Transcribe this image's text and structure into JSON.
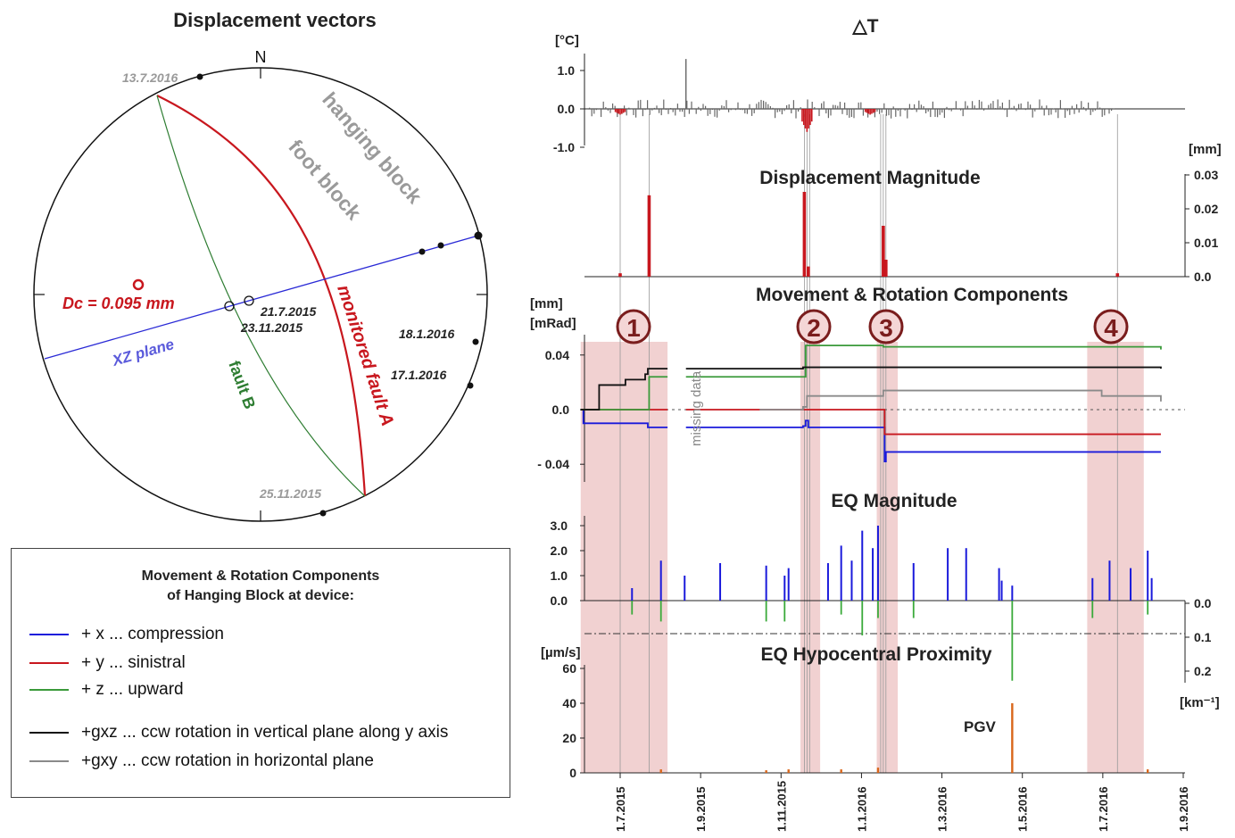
{
  "stereonet": {
    "title": "Displacement vectors",
    "north_label": "N",
    "dc_label": "Dc = 0.095 mm",
    "labels": {
      "hanging_block": "hanging block",
      "foot_block": "foot block",
      "monitored_fault_a": "monitored fault A",
      "fault_b": "fault B",
      "xz_plane": "XZ plane"
    },
    "dates": {
      "d_13_7_2016": "13.7.2016",
      "d_25_11_2015": "25.11.2015",
      "d_21_7_2015": "21.7.2015",
      "d_23_11_2015": "23.11.2015",
      "d_18_1_2016": "18.1.2016",
      "d_17_1_2016": "17.1.2016"
    },
    "colors": {
      "fault_a": "#c8171e",
      "fault_b": "#2e7d32",
      "xz_plane": "#2a2ad6",
      "date_gray": "#9a9a9a"
    }
  },
  "legend": {
    "title_line1": "Movement & Rotation Components",
    "title_line2": "of Hanging Block at device:",
    "items": [
      {
        "label": "+ x ... compression",
        "color": "#1a1adb"
      },
      {
        "label": "+ y ... sinistral",
        "color": "#c8171e"
      },
      {
        "label": "+ z ... upward",
        "color": "#3a9a3a"
      },
      {
        "label": "+gxz ... ccw rotation in vertical plane along y axis",
        "color": "#111111"
      },
      {
        "label": "+gxy ... ccw rotation in horizontal plane",
        "color": "#8a8a8a"
      }
    ]
  },
  "highlight_labels": [
    "1",
    "2",
    "3",
    "4"
  ],
  "missing_data_label": "missing data",
  "pgv_label": "PGV",
  "chart_data": [
    {
      "type": "bar",
      "title": "△T",
      "ylabel": "[°C]",
      "ylim": [
        -1.0,
        1.0
      ],
      "yticks": [
        "1.0",
        "0.0",
        "-1.0"
      ],
      "x_dates": [
        "1.7.2015",
        "1.9.2015",
        "1.11.2015",
        "1.1.2016",
        "1.3.2016",
        "1.5.2016",
        "1.7.2016",
        "1.9.2016"
      ],
      "highlighted_negative_dips": [
        {
          "date": "2015-07-01",
          "value": -0.15
        },
        {
          "date": "2015-11-20",
          "value": -0.6
        },
        {
          "date": "2016-01-07",
          "value": -0.15
        }
      ],
      "max_spike": {
        "date": "2015-08-20",
        "value": 1.3
      }
    },
    {
      "type": "bar",
      "title": "Displacement Magnitude",
      "ylabel": "[mm]",
      "ylim": [
        0,
        0.03
      ],
      "yticks": [
        "0.03",
        "0.02",
        "0.01",
        "0.0"
      ],
      "bars": [
        {
          "date": "2015-07-01",
          "value": 0.001
        },
        {
          "date": "2015-07-23",
          "value": 0.024
        },
        {
          "date": "2015-11-18",
          "value": 0.025
        },
        {
          "date": "2015-11-21",
          "value": 0.003
        },
        {
          "date": "2016-01-17",
          "value": 0.015
        },
        {
          "date": "2016-01-19",
          "value": 0.005
        },
        {
          "date": "2016-07-13",
          "value": 0.001
        }
      ]
    },
    {
      "type": "line",
      "title": "Movement & Rotation Components",
      "ylabel": "[mm]",
      "ylabel2": "[mRad]",
      "ylim": [
        -0.06,
        0.06
      ],
      "yticks": [
        "0.04",
        "0.0",
        "- 0.04"
      ],
      "series": [
        {
          "name": "+ x ... compression",
          "color": "#1a1adb",
          "points": [
            [
              "2015-06-01",
              0.0
            ],
            [
              "2015-06-03",
              -0.01
            ],
            [
              "2015-07-22",
              -0.013
            ],
            [
              "2015-11-17",
              -0.012
            ],
            [
              "2015-11-19",
              -0.008
            ],
            [
              "2015-11-21",
              -0.013
            ],
            [
              "2016-01-17",
              -0.013
            ],
            [
              "2016-01-18",
              -0.038
            ],
            [
              "2016-01-19",
              -0.031
            ],
            [
              "2016-08-15",
              -0.031
            ]
          ]
        },
        {
          "name": "+ y ... sinistral",
          "color": "#c8171e",
          "points": [
            [
              "2015-06-01",
              0.0
            ],
            [
              "2015-11-17",
              0.0
            ],
            [
              "2016-01-16",
              0.0
            ],
            [
              "2016-01-18",
              -0.018
            ],
            [
              "2016-08-15",
              -0.018
            ]
          ]
        },
        {
          "name": "+ z ... upward",
          "color": "#3a9a3a",
          "points": [
            [
              "2015-06-01",
              0.0
            ],
            [
              "2015-07-22",
              0.0
            ],
            [
              "2015-07-23",
              0.024
            ],
            [
              "2015-11-17",
              0.024
            ],
            [
              "2015-11-19",
              0.047
            ],
            [
              "2016-01-17",
              0.046
            ],
            [
              "2016-08-15",
              0.044
            ]
          ]
        },
        {
          "name": "+gxz ... ccw rotation in vertical plane along y axis",
          "color": "#111111",
          "points": [
            [
              "2015-06-01",
              0.0
            ],
            [
              "2015-06-08",
              0.0
            ],
            [
              "2015-06-15",
              0.018
            ],
            [
              "2015-07-05",
              0.022
            ],
            [
              "2015-07-20",
              0.026
            ],
            [
              "2015-07-22",
              0.03
            ],
            [
              "2015-11-17",
              0.031
            ],
            [
              "2016-01-17",
              0.031
            ],
            [
              "2016-08-15",
              0.03
            ]
          ]
        },
        {
          "name": "+gxy ... ccw rotation in horizontal plane",
          "color": "#8a8a8a",
          "points": [
            [
              "2015-10-15",
              0.0
            ],
            [
              "2015-11-17",
              0.002
            ],
            [
              "2015-11-20",
              0.01
            ],
            [
              "2016-01-17",
              0.014
            ],
            [
              "2016-06-27",
              0.014
            ],
            [
              "2016-07-01",
              0.01
            ],
            [
              "2016-08-15",
              0.006
            ]
          ]
        }
      ],
      "missing_data_period": [
        "2015-08-06",
        "2015-08-20"
      ],
      "highlight_periods": [
        {
          "label": "1",
          "start": "2015-06-01",
          "end": "2015-08-06"
        },
        {
          "label": "2",
          "start": "2015-11-15",
          "end": "2015-11-30"
        },
        {
          "label": "3",
          "start": "2016-01-12",
          "end": "2016-01-28"
        },
        {
          "label": "4",
          "start": "2016-06-20",
          "end": "2016-08-02"
        }
      ]
    },
    {
      "type": "bar",
      "title": "EQ Magnitude",
      "ylim": [
        0,
        3.0
      ],
      "yticks": [
        "3.0",
        "2.0",
        "1.0",
        "0.0"
      ],
      "magnitudes": [
        {
          "date": "2015-07-10",
          "value": 0.5
        },
        {
          "date": "2015-08-01",
          "value": 1.6
        },
        {
          "date": "2015-08-19",
          "value": 1.0
        },
        {
          "date": "2015-09-15",
          "value": 1.5
        },
        {
          "date": "2015-10-20",
          "value": 1.4
        },
        {
          "date": "2015-11-03",
          "value": 1.0
        },
        {
          "date": "2015-11-06",
          "value": 1.3
        },
        {
          "date": "2015-12-06",
          "value": 1.5
        },
        {
          "date": "2015-12-16",
          "value": 2.2
        },
        {
          "date": "2015-12-24",
          "value": 1.6
        },
        {
          "date": "2016-01-01",
          "value": 2.8
        },
        {
          "date": "2016-01-09",
          "value": 2.1
        },
        {
          "date": "2016-01-13",
          "value": 3.0
        },
        {
          "date": "2016-02-09",
          "value": 1.5
        },
        {
          "date": "2016-03-06",
          "value": 2.1
        },
        {
          "date": "2016-03-20",
          "value": 2.1
        },
        {
          "date": "2016-04-14",
          "value": 1.3
        },
        {
          "date": "2016-04-16",
          "value": 0.8
        },
        {
          "date": "2016-04-24",
          "value": 0.6
        },
        {
          "date": "2016-06-24",
          "value": 0.9
        },
        {
          "date": "2016-07-07",
          "value": 1.6
        },
        {
          "date": "2016-07-23",
          "value": 1.3
        },
        {
          "date": "2016-08-05",
          "value": 2.0
        },
        {
          "date": "2016-08-08",
          "value": 0.9
        }
      ]
    },
    {
      "type": "bar",
      "title": "EQ Hypocentral Proximity",
      "ylabel": "[km⁻¹]",
      "ylim": [
        0.0,
        0.2
      ],
      "yticks": [
        "0.0",
        "0.1",
        "0.2"
      ],
      "proximity": [
        {
          "date": "2015-07-10",
          "value": 0.04
        },
        {
          "date": "2015-08-01",
          "value": 0.06
        },
        {
          "date": "2015-10-20",
          "value": 0.06
        },
        {
          "date": "2015-11-03",
          "value": 0.06
        },
        {
          "date": "2015-12-16",
          "value": 0.04
        },
        {
          "date": "2016-01-01",
          "value": 0.1
        },
        {
          "date": "2016-01-13",
          "value": 0.05
        },
        {
          "date": "2016-02-09",
          "value": 0.05
        },
        {
          "date": "2016-04-24",
          "value": 0.23
        },
        {
          "date": "2016-06-24",
          "value": 0.05
        },
        {
          "date": "2016-08-05",
          "value": 0.04
        }
      ]
    },
    {
      "type": "bar",
      "ylabel": "[µm/s]",
      "ylim": [
        0,
        60
      ],
      "yticks": [
        "60",
        "40",
        "20",
        "0"
      ],
      "series": [
        {
          "name": "PGV",
          "color": "#d9661a"
        }
      ],
      "pgv": [
        {
          "date": "2015-08-01",
          "value": 2
        },
        {
          "date": "2015-10-20",
          "value": 1.5
        },
        {
          "date": "2015-11-06",
          "value": 2
        },
        {
          "date": "2015-12-16",
          "value": 2
        },
        {
          "date": "2016-01-13",
          "value": 3
        },
        {
          "date": "2016-04-24",
          "value": 40
        },
        {
          "date": "2016-08-05",
          "value": 2
        }
      ]
    }
  ]
}
